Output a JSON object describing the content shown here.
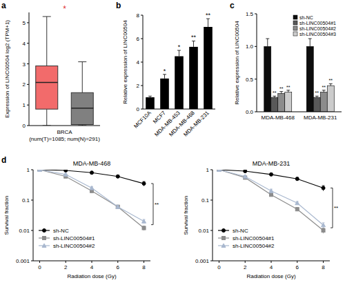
{
  "chart_data": [
    {
      "type": "box",
      "panel_label": "a",
      "ylabel": "Expression of LINC00504 log2 (TPM+1)",
      "xlabel": [
        "BRCA",
        "(num(T)=1085; num(N)=291)"
      ],
      "ylim": [
        0,
        5.5
      ],
      "yticks": [
        0,
        1,
        2,
        3,
        4,
        5
      ],
      "boxes": [
        {
          "color": "#f26b6b",
          "min": 0,
          "q1": 0.8,
          "median": 2.1,
          "q3": 2.9,
          "max": 5.3
        },
        {
          "color": "#808080",
          "min": 0,
          "q1": 0.05,
          "median": 0.85,
          "q3": 1.6,
          "max": 3.1
        }
      ],
      "annotations": [
        "*"
      ]
    },
    {
      "type": "bar",
      "panel_label": "b",
      "ylabel": "Relative expression of LINC00504",
      "categories": [
        "MCF10A",
        "MCF7",
        "MDA-MB-453",
        "MDA-MB-468",
        "MDA-MB-231"
      ],
      "values": [
        1,
        2.6,
        4.5,
        5.3,
        7.0
      ],
      "errors": [
        0.1,
        0.35,
        0.5,
        0.5,
        0.7
      ],
      "significance": [
        null,
        "*",
        "*",
        "**",
        "**"
      ],
      "color": "#000000",
      "ylim": [
        0,
        8
      ],
      "yticks": [
        0,
        2,
        4,
        6,
        8
      ]
    },
    {
      "type": "bar",
      "panel_label": "c",
      "ylabel": "Relative expression of LINC00504",
      "categories": [
        "MDA-MB-468",
        "MDA-MB-231"
      ],
      "series": [
        {
          "name": "sh-NC",
          "color": "#0d0d0d",
          "values": [
            1,
            1
          ],
          "errors": [
            0.12,
            0.12
          ],
          "significance": [
            null,
            null
          ]
        },
        {
          "name": "sh-LINC00504#1",
          "color": "#595959",
          "values": [
            0.22,
            0.22
          ],
          "errors": [
            0.02,
            0.02
          ],
          "significance": [
            "**",
            "**"
          ]
        },
        {
          "name": "sh-LINC00504#2",
          "color": "#8c8c8c",
          "values": [
            0.28,
            0.3
          ],
          "errors": [
            0.03,
            0.03
          ],
          "significance": [
            "**",
            "**"
          ]
        },
        {
          "name": "sh-LINC00504#3",
          "color": "#cccccc",
          "values": [
            0.3,
            0.4
          ],
          "errors": [
            0.03,
            0.03
          ],
          "significance": [
            "**",
            "**"
          ]
        }
      ],
      "ylim": [
        0,
        1.5
      ],
      "yticks": [
        {
          "value": 0,
          "label": "0.0"
        },
        0.5,
        {
          "value": 1,
          "label": "1.0"
        },
        1.5
      ],
      "legend": "top-right"
    },
    {
      "type": "line",
      "panel_label": "d",
      "title": "MDA-MB-468",
      "xlabel": "Radiation dose (Gy)",
      "ylabel": "Survival fraction",
      "x": [
        0,
        2,
        4,
        6,
        8
      ],
      "series": [
        {
          "name": "sh-NC",
          "color": "#000000",
          "marker": "circle",
          "values": [
            1,
            0.95,
            0.8,
            0.6,
            0.35
          ],
          "errors": [
            0,
            0.05,
            0.08,
            0.07,
            0.06
          ]
        },
        {
          "name": "sh-LINC00504#1",
          "color": "#8c8c8c",
          "marker": "square",
          "values": [
            1,
            0.6,
            0.2,
            0.06,
            0.012
          ],
          "errors": [
            0,
            0.05,
            0.03,
            0.008,
            0.002
          ]
        },
        {
          "name": "sh-LINC00504#2",
          "color": "#a9b8cf",
          "marker": "triangle",
          "values": [
            1,
            0.7,
            0.25,
            0.06,
            0.02
          ],
          "errors": [
            0,
            0.05,
            0.03,
            0.008,
            0.003
          ]
        }
      ],
      "log": "y",
      "xlim": [
        -0.5,
        8.5
      ],
      "xticks": [
        0,
        2,
        4,
        6,
        8
      ],
      "ylim": [
        0.001,
        1
      ],
      "yticks": [
        0.001,
        0.01,
        0.1,
        1
      ],
      "legend": "bottom-left",
      "annotations": [
        "**"
      ]
    },
    {
      "type": "line",
      "title": "MDA-MB-231",
      "xlabel": "Radiation dose (Gy)",
      "ylabel": "Survival fraction",
      "x": [
        0,
        2,
        4,
        6,
        8
      ],
      "series": [
        {
          "name": "sh-NC",
          "color": "#000000",
          "marker": "circle",
          "values": [
            1,
            0.9,
            0.7,
            0.5,
            0.25
          ],
          "errors": [
            0,
            0.05,
            0.07,
            0.06,
            0.05
          ]
        },
        {
          "name": "sh-LINC00504#1",
          "color": "#8c8c8c",
          "marker": "square",
          "values": [
            1,
            0.55,
            0.15,
            0.05,
            0.01
          ],
          "errors": [
            0,
            0.05,
            0.02,
            0.007,
            0.002
          ]
        },
        {
          "name": "sh-LINC00504#2",
          "color": "#a9b8cf",
          "marker": "triangle",
          "values": [
            1,
            0.6,
            0.2,
            0.08,
            0.015
          ],
          "errors": [
            0,
            0.05,
            0.03,
            0.01,
            0.003
          ]
        }
      ],
      "log": "y",
      "xlim": [
        -0.5,
        8.5
      ],
      "xticks": [
        0,
        2,
        4,
        6,
        8
      ],
      "ylim": [
        0.001,
        1
      ],
      "yticks": [
        0.001,
        0.01,
        0.1,
        1
      ],
      "legend": "bottom-left",
      "annotations": [
        "**"
      ]
    }
  ]
}
